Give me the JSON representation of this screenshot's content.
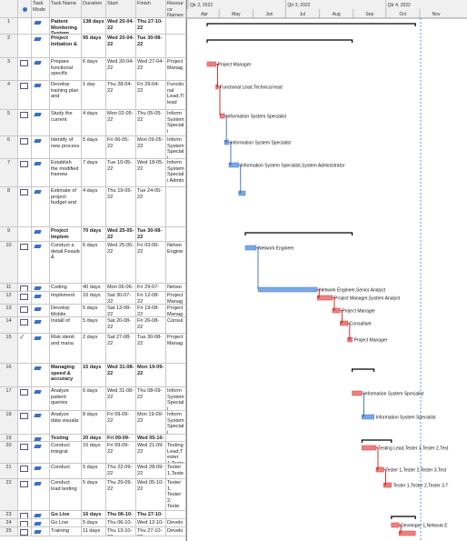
{
  "header": {
    "task_mode": "Task Mode",
    "task_name": "Task Name",
    "duration": "Duration",
    "start": "Start",
    "finish": "Finish",
    "resources": "Resource Names"
  },
  "timeline": {
    "quarters": [
      "Qtr 2, 2022",
      "Qtr 3, 2022",
      "Qtr 4, 2022"
    ],
    "months": [
      "Apr",
      "May",
      "Jun",
      "Jul",
      "Aug",
      "Sep",
      "Oct",
      "Nov"
    ]
  },
  "tasks": [
    {
      "id": "1",
      "name": "Patient Monitoring System",
      "duration": "138 days",
      "start": "Wed 20-04-22",
      "finish": "Thu 27-10-22"
    },
    {
      "id": "2",
      "name": "Project Initiation &",
      "duration": "95 days",
      "start": "Wed 20-04-22",
      "finish": "Tue 30-08-22"
    },
    {
      "id": "3",
      "name": "Prepare functional specific",
      "duration": "6 days",
      "start": "Wed 20-04-22",
      "finish": "Wed 27-04-22",
      "resources": "Project Manag",
      "bar_label": "Project Manager"
    },
    {
      "id": "4",
      "name": "Develop training plan and",
      "duration": "1 day",
      "start": "Thu 28-04-22",
      "finish": "Fri 29-04-22",
      "resources": "Functional Lead,Tl lead",
      "bar_label": "Functional Lead,Technical lead"
    },
    {
      "id": "5",
      "name": "Study the current",
      "duration": "4 days",
      "start": "Mon 02-05-22",
      "finish": "Thu 05-05-22",
      "resources": "Inform System Speciali",
      "bar_label": "Information System Specialist"
    },
    {
      "id": "6",
      "name": "Identify of new process",
      "duration": "5 days",
      "start": "Fri 06-05-22",
      "finish": "Mon 09-05-22",
      "resources": "Inform System Speciali",
      "bar_label": "Information System Specialist"
    },
    {
      "id": "7",
      "name": "Establish the modified framew",
      "duration": "7 days",
      "start": "Tue 10-05-22",
      "finish": "Wed 18-05-22",
      "resources": "Inform System Speciali Admin",
      "bar_label": "Information System Specialist,System Administrator"
    },
    {
      "id": "8",
      "name": "Estimate of project budget and",
      "duration": "4 days",
      "start": "Thu 19-05-22",
      "finish": "Tue 24-05-22"
    },
    {
      "id": "9",
      "name": "Project Implem",
      "duration": "70 days",
      "start": "Wed 25-05-22",
      "finish": "Tue 30-08-22"
    },
    {
      "id": "10",
      "name": "Conduct a detail Feasib &",
      "duration": "6 days",
      "start": "Wed 25-05-22",
      "finish": "Fri 03-06-22",
      "resources": "Netwo Engine",
      "bar_label": "Network Engineer"
    },
    {
      "id": "11",
      "name": "Coding",
      "duration": "40 days",
      "start": "Mon 06-06-",
      "finish": "Fri 29-07-22",
      "resources": "Netwo",
      "bar_label": "Network Engineer,Senior Analyst"
    },
    {
      "id": "12",
      "name": "Implement",
      "duration": "10 days",
      "start": "Sat 30-07-22",
      "finish": "Fri 12-08-22",
      "resources": "Project Manag",
      "bar_label": "Project Manager,System Analyst"
    },
    {
      "id": "13",
      "name": "Develop Mobile",
      "duration": "5 days",
      "start": "Sat 13-08-22",
      "finish": "Fri 19-08-22",
      "resources": "Project Manag",
      "bar_label": "Project Manager"
    },
    {
      "id": "14",
      "name": "Install of",
      "duration": "5 days",
      "start": "Sat 20-08-22",
      "finish": "Fri 26-08-22",
      "resources": "Consul",
      "bar_label": "Consultant"
    },
    {
      "id": "15",
      "name": "Risk identi and mana",
      "duration": "2 days",
      "start": "Sat 27-08-22",
      "finish": "Tue 30-08-22",
      "resources": "Project Manag",
      "bar_label": "Project Manager"
    },
    {
      "id": "16",
      "name": "Managing speed & accuracy",
      "duration": "15 days",
      "start": "Wed 31-08-22",
      "finish": "Mon 19-09-22"
    },
    {
      "id": "17",
      "name": "Analyze patient queries",
      "duration": "6 days",
      "start": "Wed 31-08-22",
      "finish": "Thu 08-09-22",
      "resources": "Inform System Speciali",
      "bar_label": "Information System Specialist"
    },
    {
      "id": "18",
      "name": "Analyze data visualiz",
      "duration": "8 days",
      "start": "Fri 09-09-22",
      "finish": "Mon 19-09-22",
      "resources": "Inform System Speciali",
      "bar_label": "Information System Specialist"
    },
    {
      "id": "19",
      "name": "Testing",
      "duration": "20 days",
      "start": "Fri 09-09-22",
      "finish": "Wed 05-10-"
    },
    {
      "id": "20",
      "name": "Conduct integrat",
      "duration": "10 days",
      "start": "Fri 09-09-22",
      "finish": "Wed 21-09-22",
      "resources": "Testing Lead,Tester 1,Teste",
      "bar_label": "Testing Lead,Tester 1,Tester 2,Test"
    },
    {
      "id": "21",
      "name": "Conduct",
      "duration": "5 days",
      "start": "Thu 22-09-22",
      "finish": "Wed 28-09-22",
      "resources": "Tester 1,Teste",
      "bar_label": "Tester 1,Tester 2,Tester 3,Test"
    },
    {
      "id": "22",
      "name": "Conduct load testing",
      "duration": "5 days",
      "start": "Thu 29-09-22",
      "finish": "Wed 05-10-22",
      "resources": "Tester 1, Tester 2, Teste",
      "bar_label": "Tester 1,Tester 2,Tester 3,T"
    },
    {
      "id": "23",
      "name": "Go Live",
      "duration": "16 days",
      "start": "Thu 06-10-22",
      "finish": "Thu 27-10-22"
    },
    {
      "id": "24",
      "name": "Go Live",
      "duration": "5 days",
      "start": "Thu 06-10-22",
      "finish": "Wed 12-10-22",
      "resources": "Develo",
      "bar_label": "Developer 1,Network E"
    },
    {
      "id": "25",
      "name": "Training",
      "duration": "11 days",
      "start": "Thu 13-10-22",
      "finish": "Thu 27-10-22",
      "resources": "Develo"
    }
  ]
}
